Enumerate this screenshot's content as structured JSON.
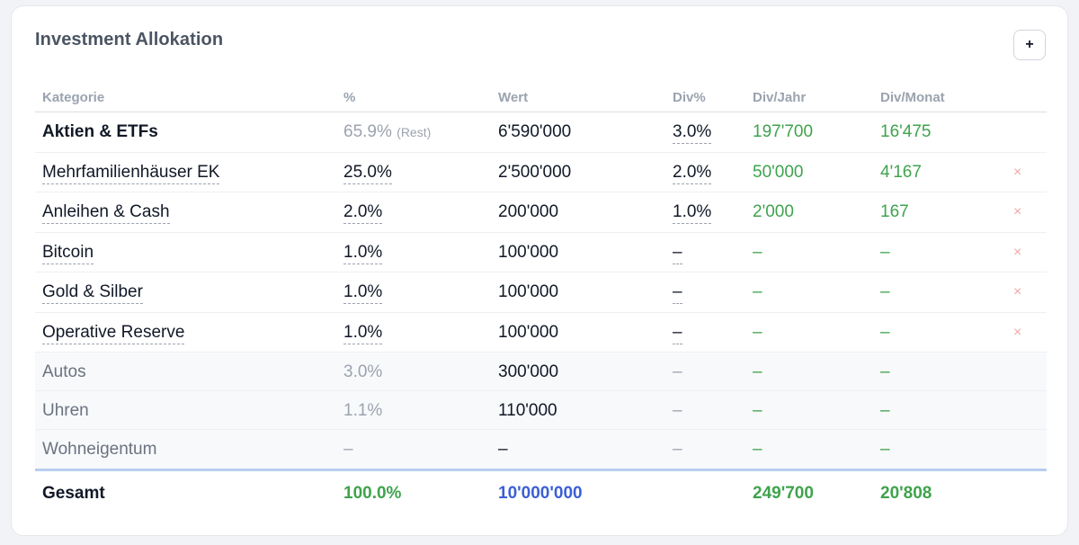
{
  "card": {
    "title": "Investment Allokation",
    "add_label": "+"
  },
  "columns": {
    "kategorie": "Kategorie",
    "pct": "%",
    "wert": "Wert",
    "div": "Div%",
    "div_jahr": "Div/Jahr",
    "div_monat": "Div/Monat"
  },
  "rows": [
    {
      "name": "Aktien & ETFs",
      "pct": "65.9%",
      "pct_note": "(Rest)",
      "wert": "6'590'000",
      "div": "3.0%",
      "div_jahr": "197'700",
      "div_monat": "16'475"
    },
    {
      "name": "Mehrfamilienhäuser EK",
      "pct": "25.0%",
      "wert": "2'500'000",
      "div": "2.0%",
      "div_jahr": "50'000",
      "div_monat": "4'167",
      "remove": "×"
    },
    {
      "name": "Anleihen & Cash",
      "pct": "2.0%",
      "wert": "200'000",
      "div": "1.0%",
      "div_jahr": "2'000",
      "div_monat": "167",
      "remove": "×"
    },
    {
      "name": "Bitcoin",
      "pct": "1.0%",
      "wert": "100'000",
      "div": "–",
      "div_jahr": "–",
      "div_monat": "–",
      "remove": "×"
    },
    {
      "name": "Gold & Silber",
      "pct": "1.0%",
      "wert": "100'000",
      "div": "–",
      "div_jahr": "–",
      "div_monat": "–",
      "remove": "×"
    },
    {
      "name": "Operative Reserve",
      "pct": "1.0%",
      "wert": "100'000",
      "div": "–",
      "div_jahr": "–",
      "div_monat": "–",
      "remove": "×"
    },
    {
      "name": "Autos",
      "pct": "3.0%",
      "wert": "300'000",
      "div": "–",
      "div_jahr": "–",
      "div_monat": "–"
    },
    {
      "name": "Uhren",
      "pct": "1.1%",
      "wert": "110'000",
      "div": "–",
      "div_jahr": "–",
      "div_monat": "–"
    },
    {
      "name": "Wohneigentum",
      "pct": "–",
      "wert": "–",
      "div": "–",
      "div_jahr": "–",
      "div_monat": "–"
    }
  ],
  "total": {
    "label": "Gesamt",
    "pct": "100.0%",
    "wert": "10'000'000",
    "div_jahr": "249'700",
    "div_monat": "20'808"
  },
  "colors": {
    "green": "#3fa34d",
    "blue": "#3b5fd6",
    "remove": "#f0a8a8"
  }
}
